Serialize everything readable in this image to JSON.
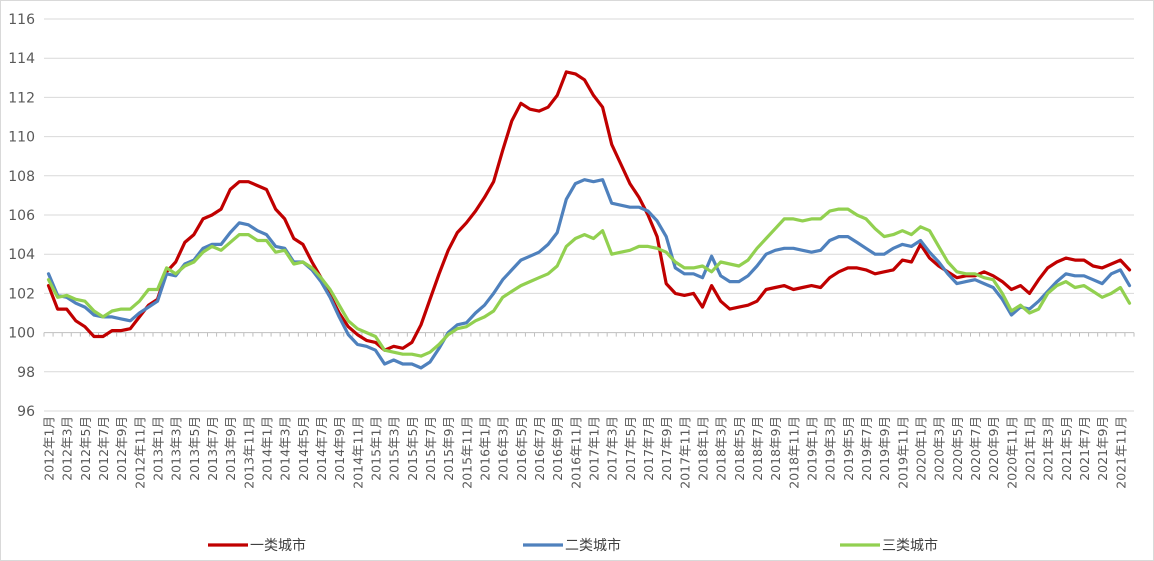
{
  "chart_data": {
    "type": "line",
    "title": "",
    "xlabel": "",
    "ylabel": "",
    "ylim": [
      96,
      116
    ],
    "yticks": [
      96,
      98,
      100,
      102,
      104,
      106,
      108,
      110,
      112,
      114,
      116
    ],
    "grid": "horizontal",
    "legend_position": "bottom",
    "categories": [
      "2012年1月",
      "2012年2月",
      "2012年3月",
      "2012年4月",
      "2012年5月",
      "2012年6月",
      "2012年7月",
      "2012年8月",
      "2012年9月",
      "2012年10月",
      "2012年11月",
      "2012年12月",
      "2013年1月",
      "2013年2月",
      "2013年3月",
      "2013年4月",
      "2013年5月",
      "2013年6月",
      "2013年7月",
      "2013年8月",
      "2013年9月",
      "2013年10月",
      "2013年11月",
      "2013年12月",
      "2014年1月",
      "2014年2月",
      "2014年3月",
      "2014年4月",
      "2014年5月",
      "2014年6月",
      "2014年7月",
      "2014年8月",
      "2014年9月",
      "2014年10月",
      "2014年11月",
      "2014年12月",
      "2015年1月",
      "2015年2月",
      "2015年3月",
      "2015年4月",
      "2015年5月",
      "2015年6月",
      "2015年7月",
      "2015年8月",
      "2015年9月",
      "2015年10月",
      "2015年11月",
      "2015年12月",
      "2016年1月",
      "2016年2月",
      "2016年3月",
      "2016年4月",
      "2016年5月",
      "2016年6月",
      "2016年7月",
      "2016年8月",
      "2016年9月",
      "2016年10月",
      "2016年11月",
      "2016年12月",
      "2017年1月",
      "2017年2月",
      "2017年3月",
      "2017年4月",
      "2017年5月",
      "2017年6月",
      "2017年7月",
      "2017年8月",
      "2017年9月",
      "2017年10月",
      "2017年11月",
      "2017年12月",
      "2018年1月",
      "2018年2月",
      "2018年3月",
      "2018年4月",
      "2018年5月",
      "2018年6月",
      "2018年7月",
      "2018年8月",
      "2018年9月",
      "2018年10月",
      "2018年11月",
      "2018年12月",
      "2019年1月",
      "2019年2月",
      "2019年3月",
      "2019年4月",
      "2019年5月",
      "2019年6月",
      "2019年7月",
      "2019年8月",
      "2019年9月",
      "2019年10月",
      "2019年11月",
      "2019年12月",
      "2020年1月",
      "2020年2月",
      "2020年3月",
      "2020年4月",
      "2020年5月",
      "2020年6月",
      "2020年7月",
      "2020年8月",
      "2020年9月",
      "2020年10月",
      "2020年11月",
      "2020年12月",
      "2021年1月",
      "2021年2月",
      "2021年3月",
      "2021年4月",
      "2021年5月",
      "2021年6月",
      "2021年7月",
      "2021年8月",
      "2021年9月",
      "2021年10月",
      "2021年11月",
      "2021年12月"
    ],
    "x_tick_labels": [
      "2012年1月",
      "2012年3月",
      "2012年5月",
      "2012年7月",
      "2012年9月",
      "2012年11月",
      "2013年1月",
      "2013年3月",
      "2013年5月",
      "2013年7月",
      "2013年9月",
      "2013年11月",
      "2014年1月",
      "2014年3月",
      "2014年5月",
      "2014年7月",
      "2014年9月",
      "2014年11月",
      "2015年1月",
      "2015年3月",
      "2015年5月",
      "2015年7月",
      "2015年9月",
      "2015年11月",
      "2016年1月",
      "2016年3月",
      "2016年5月",
      "2016年7月",
      "2016年9月",
      "2016年11月",
      "2017年1月",
      "2017年3月",
      "2017年5月",
      "2017年7月",
      "2017年9月",
      "2017年11月",
      "2018年1月",
      "2018年3月",
      "2018年5月",
      "2018年7月",
      "2018年9月",
      "2018年11月",
      "2019年1月",
      "2019年3月",
      "2019年5月",
      "2019年7月",
      "2019年9月",
      "2019年11月",
      "2020年1月",
      "2020年3月",
      "2020年5月",
      "2020年7月",
      "2020年9月",
      "2020年11月",
      "2021年1月",
      "2021年3月",
      "2021年5月",
      "2021年7月",
      "2021年9月",
      "2021年11月"
    ],
    "series": [
      {
        "name": "一类城市",
        "color": "#c00000",
        "values": [
          102.4,
          101.2,
          101.2,
          100.6,
          100.3,
          99.8,
          99.8,
          100.1,
          100.1,
          100.2,
          100.8,
          101.4,
          101.7,
          103.1,
          103.6,
          104.6,
          105.0,
          105.8,
          106.0,
          106.3,
          107.3,
          107.7,
          107.7,
          107.5,
          107.3,
          106.3,
          105.8,
          104.8,
          104.5,
          103.6,
          102.8,
          101.9,
          101.0,
          100.3,
          99.9,
          99.6,
          99.5,
          99.1,
          99.3,
          99.2,
          99.5,
          100.4,
          101.7,
          103.0,
          104.2,
          105.1,
          105.6,
          106.2,
          106.9,
          107.7,
          109.3,
          110.8,
          111.7,
          111.4,
          111.3,
          111.5,
          112.1,
          113.3,
          113.2,
          112.9,
          112.1,
          111.5,
          109.6,
          108.6,
          107.6,
          106.9,
          106.0,
          104.9,
          102.5,
          102.0,
          101.9,
          102.0,
          101.3,
          102.4,
          101.6,
          101.2,
          101.3,
          101.4,
          101.6,
          102.2,
          102.3,
          102.4,
          102.2,
          102.3,
          102.4,
          102.3,
          102.8,
          103.1,
          103.3,
          103.3,
          103.2,
          103.0,
          103.1,
          103.2,
          103.7,
          103.6,
          104.5,
          103.8,
          103.4,
          103.1,
          102.8,
          102.9,
          102.9,
          103.1,
          102.9,
          102.6,
          102.2,
          102.4,
          102.0,
          102.7,
          103.3,
          103.6,
          103.8,
          103.7,
          103.7,
          103.4,
          103.3,
          103.5,
          103.7,
          103.2
        ]
      },
      {
        "name": "二类城市",
        "color": "#4f81bd",
        "values": [
          103.0,
          101.9,
          101.8,
          101.5,
          101.3,
          100.9,
          100.8,
          100.8,
          100.7,
          100.6,
          101.0,
          101.3,
          101.6,
          103.0,
          102.9,
          103.5,
          103.7,
          104.3,
          104.5,
          104.5,
          105.1,
          105.6,
          105.5,
          105.2,
          105.0,
          104.4,
          104.3,
          103.6,
          103.6,
          103.2,
          102.6,
          101.8,
          100.8,
          99.9,
          99.4,
          99.3,
          99.1,
          98.4,
          98.6,
          98.4,
          98.4,
          98.2,
          98.5,
          99.2,
          100.0,
          100.4,
          100.5,
          101.0,
          101.4,
          102.0,
          102.7,
          103.2,
          103.7,
          103.9,
          104.1,
          104.5,
          105.1,
          106.8,
          107.6,
          107.8,
          107.7,
          107.8,
          106.6,
          106.5,
          106.4,
          106.4,
          106.2,
          105.7,
          104.9,
          103.3,
          103.0,
          103.0,
          102.8,
          103.9,
          102.9,
          102.6,
          102.6,
          102.9,
          103.4,
          104.0,
          104.2,
          104.3,
          104.3,
          104.2,
          104.1,
          104.2,
          104.7,
          104.9,
          104.9,
          104.6,
          104.3,
          104.0,
          104.0,
          104.3,
          104.5,
          104.4,
          104.7,
          104.1,
          103.6,
          103.0,
          102.5,
          102.6,
          102.7,
          102.5,
          102.3,
          101.7,
          100.9,
          101.3,
          101.2,
          101.6,
          102.1,
          102.6,
          103.0,
          102.9,
          102.9,
          102.7,
          102.5,
          103.0,
          103.2,
          102.4
        ]
      },
      {
        "name": "三类城市",
        "color": "#92d050",
        "values": [
          102.7,
          101.8,
          101.9,
          101.7,
          101.6,
          101.1,
          100.8,
          101.1,
          101.2,
          101.2,
          101.6,
          102.2,
          102.2,
          103.3,
          103.0,
          103.4,
          103.6,
          104.1,
          104.4,
          104.2,
          104.6,
          105.0,
          105.0,
          104.7,
          104.7,
          104.1,
          104.2,
          103.5,
          103.6,
          103.3,
          102.8,
          102.2,
          101.4,
          100.6,
          100.2,
          100.0,
          99.8,
          99.1,
          99.0,
          98.9,
          98.9,
          98.8,
          99.0,
          99.4,
          99.9,
          100.2,
          100.3,
          100.6,
          100.8,
          101.1,
          101.8,
          102.1,
          102.4,
          102.6,
          102.8,
          103.0,
          103.4,
          104.4,
          104.8,
          105.0,
          104.8,
          105.2,
          104.0,
          104.1,
          104.2,
          104.4,
          104.4,
          104.3,
          104.1,
          103.6,
          103.3,
          103.3,
          103.4,
          103.1,
          103.6,
          103.5,
          103.4,
          103.7,
          104.3,
          104.8,
          105.3,
          105.8,
          105.8,
          105.7,
          105.8,
          105.8,
          106.2,
          106.3,
          106.3,
          106.0,
          105.8,
          105.3,
          104.9,
          105.0,
          105.2,
          105.0,
          105.4,
          105.2,
          104.4,
          103.6,
          103.1,
          103.0,
          103.0,
          102.8,
          102.7,
          102.0,
          101.1,
          101.4,
          101.0,
          101.2,
          102.0,
          102.4,
          102.6,
          102.3,
          102.4,
          102.1,
          101.8,
          102.0,
          102.3,
          101.5
        ]
      }
    ]
  }
}
